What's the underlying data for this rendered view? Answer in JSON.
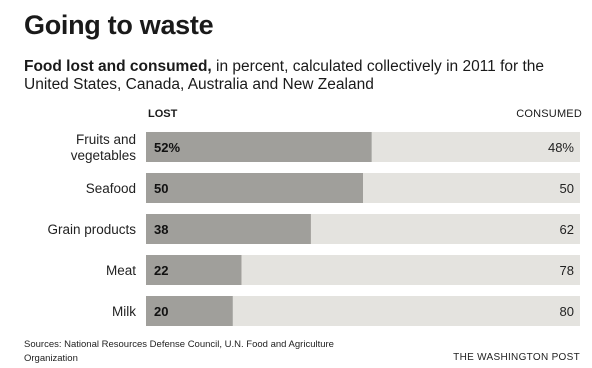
{
  "header": {
    "title": "Going to waste",
    "subtitle_bold": "Food lost and consumed,",
    "subtitle_rest": " in percent, calculated collectively in 2011 for the United States, Canada, Australia and New Zealand"
  },
  "legend": {
    "lost_label": "LOST",
    "consumed_label": "CONSUMED"
  },
  "chart_data": {
    "type": "bar",
    "stacked": true,
    "orientation": "horizontal",
    "categories": [
      "Fruits and vegetables",
      "Seafood",
      "Grain products",
      "Meat",
      "Milk"
    ],
    "category_lines": [
      [
        "Fruits and",
        "vegetables"
      ],
      [
        "Seafood"
      ],
      [
        "Grain products"
      ],
      [
        "Meat"
      ],
      [
        "Milk"
      ]
    ],
    "series": [
      {
        "name": "LOST",
        "values": [
          52,
          50,
          38,
          22,
          20
        ],
        "labels": [
          "52%",
          "50",
          "38",
          "22",
          "20"
        ],
        "color": "#a09f9b"
      },
      {
        "name": "CONSUMED",
        "values": [
          48,
          50,
          62,
          78,
          80
        ],
        "labels": [
          "48%",
          "50",
          "62",
          "78",
          "80"
        ],
        "color": "#e4e3df"
      }
    ],
    "xlim": [
      0,
      100
    ]
  },
  "footer": {
    "sources": "Sources: National Resources Defense Council, U.N. Food and Agriculture Organization",
    "credit": "THE WASHINGTON POST"
  }
}
